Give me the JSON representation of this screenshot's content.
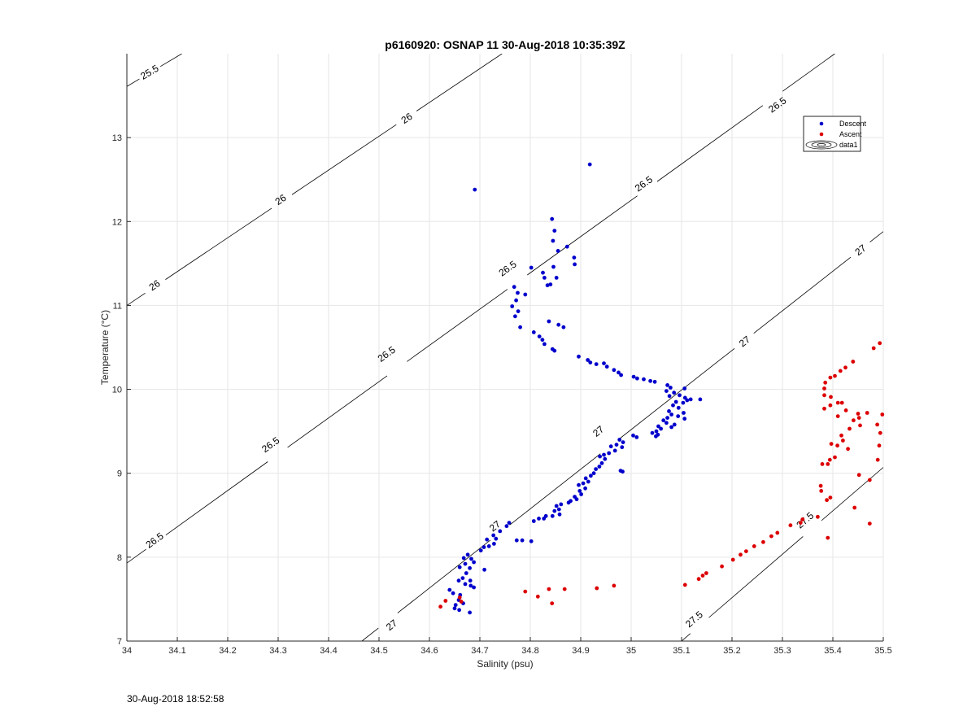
{
  "page": {
    "timestamp": "30-Aug-2018 18:52:58"
  },
  "chart_data": {
    "type": "scatter",
    "title": "p6160920: OSNAP 11 30-Aug-2018 10:35:39Z",
    "xlabel": "Salinity (psu)",
    "ylabel": "Temperature (°C)",
    "xlim": [
      34,
      35.5
    ],
    "ylim": [
      7,
      14
    ],
    "x_ticks": [
      "34",
      "34.1",
      "34.2",
      "34.3",
      "34.4",
      "34.5",
      "34.6",
      "34.7",
      "34.8",
      "34.9",
      "35",
      "35.1",
      "35.2",
      "35.3",
      "35.4",
      "35.5"
    ],
    "y_ticks": [
      "7",
      "8",
      "9",
      "10",
      "11",
      "12",
      "13"
    ],
    "grid": true,
    "legend_position": "top-right",
    "legend": [
      {
        "label": "Descent",
        "color": "#0000cc",
        "marker": "dot"
      },
      {
        "label": "Ascent",
        "color": "#dd0000",
        "marker": "dot"
      },
      {
        "label": "data1",
        "color": "#000000",
        "marker": "contour"
      }
    ],
    "contours": [
      {
        "level": 25.5,
        "label": "25.5",
        "points": [
          [
            34.0,
            13.61
          ],
          [
            34.109,
            14.0
          ]
        ],
        "labels_at": [
          [
            34.045,
            13.78
          ]
        ]
      },
      {
        "level": 26.0,
        "label": "26",
        "points": [
          [
            34.0,
            11.0
          ],
          [
            34.744,
            14.0
          ]
        ],
        "labels_at": [
          [
            34.055,
            11.24
          ],
          [
            34.305,
            12.26
          ],
          [
            34.555,
            13.23
          ]
        ]
      },
      {
        "level": 26.5,
        "label": "26.5",
        "points": [
          [
            34.0,
            7.93
          ],
          [
            35.404,
            14.0
          ]
        ],
        "labels_at": [
          [
            34.055,
            8.2
          ],
          [
            34.285,
            9.34
          ],
          [
            34.515,
            10.42
          ],
          [
            34.755,
            11.44
          ],
          [
            35.025,
            12.45
          ],
          [
            35.29,
            13.39
          ]
        ]
      },
      {
        "level": 27.0,
        "label": "27",
        "points": [
          [
            34.466,
            7.0
          ],
          [
            35.5,
            11.88
          ]
        ],
        "labels_at": [
          [
            34.525,
            7.19
          ],
          [
            34.73,
            8.37
          ],
          [
            34.935,
            9.5
          ],
          [
            35.225,
            10.57
          ],
          [
            35.455,
            11.66
          ]
        ]
      },
      {
        "level": 27.5,
        "label": "27.5",
        "points": [
          [
            35.1,
            7.0
          ],
          [
            35.5,
            9.07
          ]
        ],
        "labels_at": [
          [
            35.125,
            7.26
          ],
          [
            35.345,
            8.44
          ]
        ]
      }
    ],
    "series": [
      {
        "name": "Descent",
        "color": "#0000cc",
        "points": [
          [
            34.69,
            12.38
          ],
          [
            34.918,
            12.68
          ],
          [
            34.843,
            12.03
          ],
          [
            34.848,
            11.89
          ],
          [
            34.845,
            11.77
          ],
          [
            34.873,
            11.7
          ],
          [
            34.855,
            11.65
          ],
          [
            34.887,
            11.57
          ],
          [
            34.888,
            11.49
          ],
          [
            34.802,
            11.45
          ],
          [
            34.846,
            11.46
          ],
          [
            34.825,
            11.39
          ],
          [
            34.828,
            11.33
          ],
          [
            34.852,
            11.33
          ],
          [
            34.84,
            11.25
          ],
          [
            34.834,
            11.24
          ],
          [
            34.768,
            11.22
          ],
          [
            34.775,
            11.15
          ],
          [
            34.79,
            11.13
          ],
          [
            34.772,
            11.06
          ],
          [
            34.764,
            10.99
          ],
          [
            34.776,
            10.93
          ],
          [
            34.77,
            10.87
          ],
          [
            34.837,
            10.81
          ],
          [
            34.856,
            10.77
          ],
          [
            34.866,
            10.74
          ],
          [
            34.78,
            10.74
          ],
          [
            34.807,
            10.68
          ],
          [
            34.818,
            10.63
          ],
          [
            34.824,
            10.59
          ],
          [
            34.828,
            10.54
          ],
          [
            34.844,
            10.48
          ],
          [
            34.848,
            10.46
          ],
          [
            34.896,
            10.39
          ],
          [
            34.914,
            10.35
          ],
          [
            34.919,
            10.32
          ],
          [
            34.931,
            10.3
          ],
          [
            34.946,
            10.31
          ],
          [
            34.952,
            10.27
          ],
          [
            34.966,
            10.23
          ],
          [
            34.975,
            10.2
          ],
          [
            34.98,
            10.17
          ],
          [
            35.005,
            10.15
          ],
          [
            35.012,
            10.13
          ],
          [
            35.025,
            10.12
          ],
          [
            35.038,
            10.1
          ],
          [
            35.047,
            10.09
          ],
          [
            35.072,
            10.05
          ],
          [
            35.078,
            10.02
          ],
          [
            35.07,
            9.98
          ],
          [
            35.085,
            9.96
          ],
          [
            35.106,
            10.01
          ],
          [
            35.076,
            9.92
          ],
          [
            35.096,
            9.93
          ],
          [
            35.107,
            9.9
          ],
          [
            35.118,
            9.88
          ],
          [
            35.137,
            9.88
          ],
          [
            35.089,
            9.85
          ],
          [
            35.103,
            9.84
          ],
          [
            35.111,
            9.87
          ],
          [
            35.083,
            9.81
          ],
          [
            35.094,
            9.78
          ],
          [
            35.075,
            9.74
          ],
          [
            35.104,
            9.72
          ],
          [
            35.08,
            9.7
          ],
          [
            35.093,
            9.68
          ],
          [
            35.106,
            9.65
          ],
          [
            35.072,
            9.66
          ],
          [
            35.064,
            9.63
          ],
          [
            35.07,
            9.6
          ],
          [
            35.086,
            9.58
          ],
          [
            35.054,
            9.56
          ],
          [
            35.08,
            9.55
          ],
          [
            35.059,
            9.53
          ],
          [
            35.05,
            9.5
          ],
          [
            35.053,
            9.46
          ],
          [
            35.042,
            9.48
          ],
          [
            35.049,
            9.44
          ],
          [
            35.011,
            9.43
          ],
          [
            35.004,
            9.45
          ],
          [
            34.977,
            9.4
          ],
          [
            34.984,
            9.37
          ],
          [
            34.971,
            9.34
          ],
          [
            34.982,
            9.31
          ],
          [
            34.96,
            9.32
          ],
          [
            34.968,
            9.27
          ],
          [
            34.956,
            9.24
          ],
          [
            34.946,
            9.22
          ],
          [
            34.938,
            9.2
          ],
          [
            34.948,
            9.17
          ],
          [
            34.942,
            9.12
          ],
          [
            34.937,
            9.08
          ],
          [
            34.93,
            9.05
          ],
          [
            34.926,
            9.0
          ],
          [
            34.92,
            8.97
          ],
          [
            34.91,
            8.94
          ],
          [
            34.915,
            8.9
          ],
          [
            34.905,
            8.88
          ],
          [
            34.896,
            8.86
          ],
          [
            34.909,
            8.82
          ],
          [
            34.898,
            8.79
          ],
          [
            34.901,
            8.75
          ],
          [
            34.888,
            8.72
          ],
          [
            34.892,
            8.69
          ],
          [
            34.88,
            8.67
          ],
          [
            34.876,
            8.65
          ],
          [
            34.861,
            8.63
          ],
          [
            34.852,
            8.61
          ],
          [
            34.857,
            8.57
          ],
          [
            34.848,
            8.55
          ],
          [
            34.858,
            8.51
          ],
          [
            34.844,
            8.49
          ],
          [
            34.831,
            8.49
          ],
          [
            34.827,
            8.46
          ],
          [
            34.817,
            8.46
          ],
          [
            34.807,
            8.43
          ],
          [
            34.983,
            9.02
          ],
          [
            34.979,
            9.03
          ],
          [
            34.758,
            8.41
          ],
          [
            34.753,
            8.37
          ],
          [
            34.74,
            8.31
          ],
          [
            34.727,
            8.26
          ],
          [
            34.732,
            8.22
          ],
          [
            34.714,
            8.21
          ],
          [
            34.728,
            8.16
          ],
          [
            34.718,
            8.13
          ],
          [
            34.708,
            8.12
          ],
          [
            34.702,
            8.08
          ],
          [
            34.676,
            8.03
          ],
          [
            34.683,
            7.98
          ],
          [
            34.668,
            7.99
          ],
          [
            34.671,
            7.92
          ],
          [
            34.688,
            7.94
          ],
          [
            34.66,
            7.88
          ],
          [
            34.68,
            7.87
          ],
          [
            34.709,
            7.85
          ],
          [
            34.673,
            7.81
          ],
          [
            34.666,
            7.75
          ],
          [
            34.681,
            7.72
          ],
          [
            34.658,
            7.72
          ],
          [
            34.671,
            7.68
          ],
          [
            34.682,
            7.66
          ],
          [
            34.688,
            7.64
          ],
          [
            34.64,
            7.61
          ],
          [
            34.647,
            7.57
          ],
          [
            34.661,
            7.55
          ],
          [
            34.658,
            7.49
          ],
          [
            34.667,
            7.45
          ],
          [
            34.652,
            7.43
          ],
          [
            34.65,
            7.39
          ],
          [
            34.659,
            7.37
          ],
          [
            34.68,
            7.34
          ],
          [
            34.784,
            8.2
          ],
          [
            34.802,
            8.19
          ],
          [
            34.773,
            8.2
          ]
        ]
      },
      {
        "name": "Ascent",
        "color": "#dd0000",
        "points": [
          [
            35.493,
            10.55
          ],
          [
            35.481,
            10.49
          ],
          [
            35.44,
            10.33
          ],
          [
            35.425,
            10.26
          ],
          [
            35.415,
            10.22
          ],
          [
            35.404,
            10.16
          ],
          [
            35.395,
            10.14
          ],
          [
            35.385,
            10.08
          ],
          [
            35.383,
            10.01
          ],
          [
            35.383,
            9.93
          ],
          [
            35.396,
            9.91
          ],
          [
            35.41,
            9.84
          ],
          [
            35.418,
            9.84
          ],
          [
            35.395,
            9.81
          ],
          [
            35.383,
            9.77
          ],
          [
            35.426,
            9.75
          ],
          [
            35.45,
            9.71
          ],
          [
            35.468,
            9.72
          ],
          [
            35.452,
            9.66
          ],
          [
            35.498,
            9.7
          ],
          [
            35.41,
            9.68
          ],
          [
            35.441,
            9.63
          ],
          [
            35.454,
            9.57
          ],
          [
            35.488,
            9.58
          ],
          [
            35.433,
            9.53
          ],
          [
            35.494,
            9.48
          ],
          [
            35.417,
            9.45
          ],
          [
            35.42,
            9.39
          ],
          [
            35.397,
            9.35
          ],
          [
            35.409,
            9.33
          ],
          [
            35.492,
            9.33
          ],
          [
            35.43,
            9.29
          ],
          [
            35.404,
            9.19
          ],
          [
            35.394,
            9.16
          ],
          [
            35.489,
            9.16
          ],
          [
            35.379,
            9.11
          ],
          [
            35.39,
            9.11
          ],
          [
            35.452,
            8.98
          ],
          [
            35.473,
            8.92
          ],
          [
            35.376,
            8.85
          ],
          [
            35.377,
            8.79
          ],
          [
            35.395,
            8.71
          ],
          [
            35.388,
            8.68
          ],
          [
            35.443,
            8.59
          ],
          [
            35.37,
            8.48
          ],
          [
            35.34,
            8.45
          ],
          [
            35.336,
            8.41
          ],
          [
            35.316,
            8.38
          ],
          [
            35.473,
            8.4
          ],
          [
            35.29,
            8.29
          ],
          [
            35.278,
            8.25
          ],
          [
            35.262,
            8.18
          ],
          [
            35.244,
            8.13
          ],
          [
            35.228,
            8.07
          ],
          [
            35.217,
            8.03
          ],
          [
            35.202,
            7.97
          ],
          [
            35.18,
            7.89
          ],
          [
            35.149,
            7.81
          ],
          [
            35.142,
            7.78
          ],
          [
            35.134,
            7.74
          ],
          [
            35.107,
            7.67
          ],
          [
            34.966,
            7.66
          ],
          [
            34.932,
            7.63
          ],
          [
            34.868,
            7.62
          ],
          [
            34.837,
            7.62
          ],
          [
            34.79,
            7.59
          ],
          [
            34.815,
            7.53
          ],
          [
            34.843,
            7.45
          ],
          [
            34.632,
            7.48
          ],
          [
            34.622,
            7.41
          ],
          [
            34.66,
            7.52
          ],
          [
            34.663,
            7.47
          ],
          [
            35.39,
            8.23
          ]
        ]
      }
    ]
  }
}
